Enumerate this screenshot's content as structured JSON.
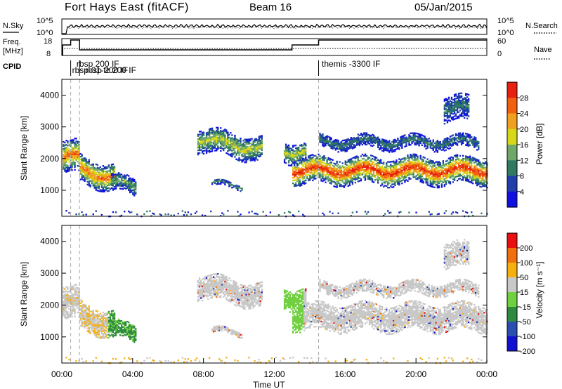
{
  "header": {
    "title": "Fort Hays East (fitACF)",
    "beam": "Beam 16",
    "date": "05/Jan/2015"
  },
  "info_panels": {
    "nsky_label": "N.Sky",
    "nsearch_label": "N.Search",
    "freq_label_1": "Freq.",
    "freq_label_2": "[MHz]",
    "nave_label": "Nave",
    "cpid_label": "CPID",
    "nsky_ticks": [
      "10^5",
      "10^0"
    ],
    "nsearch_ticks": [
      "10^5",
      "10^0"
    ],
    "freq_ticks": [
      "18",
      "8"
    ],
    "nave_ticks": [
      "60",
      "0"
    ],
    "cpid_labels": [
      {
        "text": "rbsp 200 IF",
        "hour": 0.75,
        "row": 0
      },
      {
        "text": "rbsp-01-tz 200 IF",
        "hour": 0.5,
        "row": 1
      },
      {
        "text": "rbsp 200 IF",
        "hour": 1.25,
        "row": 1
      },
      {
        "text": "themis -3300 IF",
        "hour": 14.6,
        "row": 0
      }
    ],
    "cpid_change_hours": [
      0.5,
      1.0,
      14.5
    ]
  },
  "chart_data": [
    {
      "type": "heatmap",
      "panel": "power",
      "xlabel": "",
      "ylabel": "Slant Range [km]",
      "xlim": [
        0,
        24
      ],
      "ylim": [
        180,
        4500
      ],
      "yticks": [
        "1000",
        "2000",
        "3000",
        "4000"
      ],
      "colorbar_label": "Power [dB]",
      "colorbar_ticks": [
        "4",
        "8",
        "12",
        "16",
        "20",
        "24",
        "28"
      ],
      "colors": [
        "#1010e0",
        "#1f3faa",
        "#2f7a60",
        "#6fa86a",
        "#d8d81a",
        "#f0a020",
        "#f06010",
        "#e82010"
      ]
    },
    {
      "type": "heatmap",
      "panel": "velocity",
      "xlabel": "Time UT",
      "ylabel": "Slant Range [km]",
      "xlim": [
        0,
        24
      ],
      "ylim": [
        180,
        4500
      ],
      "yticks": [
        "1000",
        "2000",
        "3000",
        "4000"
      ],
      "xticks": [
        "00:00",
        "04:00",
        "08:00",
        "12:00",
        "16:00",
        "20:00",
        "00:00"
      ],
      "colorbar_label": "Velocity [m s⁻¹]",
      "colorbar_ticks": [
        "200",
        "100",
        "50",
        "15",
        "-15",
        "-50",
        "-100",
        "-200"
      ],
      "colors": [
        "#1010d0",
        "#2a4fb0",
        "#2f8a40",
        "#70d040",
        "#c8c8c8",
        "#f5b010",
        "#f07010",
        "#e81010"
      ]
    }
  ]
}
